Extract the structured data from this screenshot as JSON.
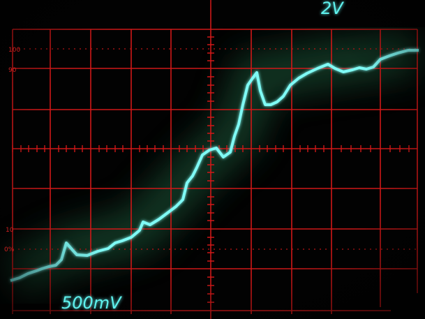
{
  "labels": {
    "volts_per_div_top": "2V",
    "volts_per_div_bottom": "500mV",
    "mark_100": "100",
    "mark_90": "90",
    "mark_10": "10",
    "mark_0": "0%"
  }
}
